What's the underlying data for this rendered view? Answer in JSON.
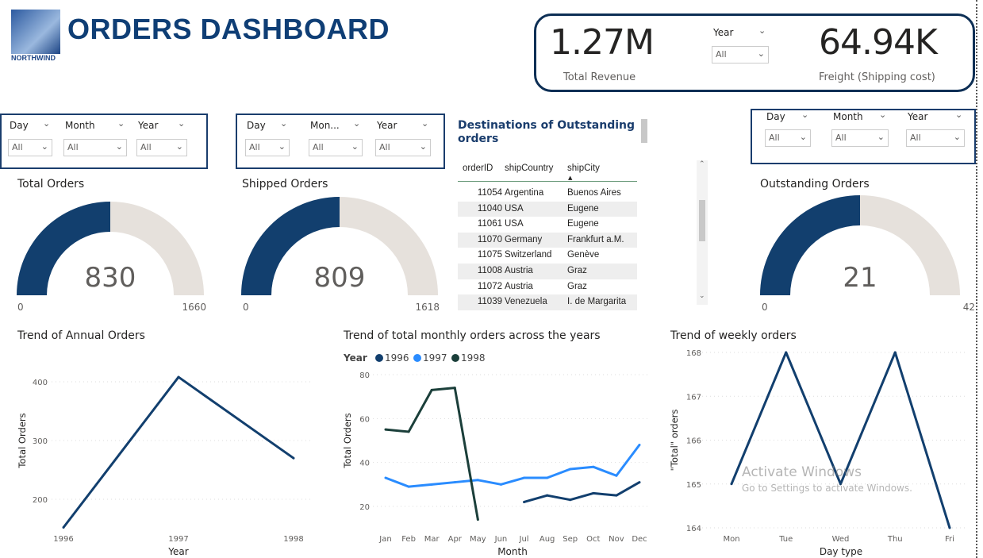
{
  "header": {
    "title": "ORDERS DASHBOARD",
    "logo_text": "NORTHWIND"
  },
  "kpi": {
    "revenue_value": "1.27M",
    "revenue_label": "Total Revenue",
    "freight_value": "64.94K",
    "freight_label": "Freight (Shipping cost)",
    "year_label": "Year",
    "year_value": "All"
  },
  "slicers": [
    {
      "labels": [
        "Day",
        "Month",
        "Year"
      ],
      "values": [
        "All",
        "All",
        "All"
      ]
    },
    {
      "labels": [
        "Day",
        "Mon...",
        "Year"
      ],
      "values": [
        "All",
        "All",
        "All"
      ]
    },
    {
      "labels": [
        "Day",
        "Month",
        "Year"
      ],
      "values": [
        "All",
        "All",
        "All"
      ]
    }
  ],
  "gauges": [
    {
      "title": "Total Orders",
      "value": "830",
      "min": "0",
      "max": "1660",
      "fraction": 0.5
    },
    {
      "title": "Shipped Orders",
      "value": "809",
      "min": "0",
      "max": "1618",
      "fraction": 0.5
    },
    {
      "title": "Outstanding Orders",
      "value": "21",
      "min": "0",
      "max": "42",
      "fraction": 0.5
    }
  ],
  "colors": {
    "primary": "#123f6e",
    "gauge_track": "#e6e1dc",
    "accent_1997": "#2a8cff",
    "accent_1998": "#1b3f3a"
  },
  "table": {
    "title": "Destinations of Outstanding orders",
    "columns": [
      "orderID",
      "shipCountry",
      "shipCity"
    ],
    "rows": [
      [
        "11054",
        "Argentina",
        "Buenos Aires"
      ],
      [
        "11040",
        "USA",
        "Eugene"
      ],
      [
        "11061",
        "USA",
        "Eugene"
      ],
      [
        "11070",
        "Germany",
        "Frankfurt a.M."
      ],
      [
        "11075",
        "Switzerland",
        "Genève"
      ],
      [
        "11008",
        "Austria",
        "Graz"
      ],
      [
        "11072",
        "Austria",
        "Graz"
      ],
      [
        "11039",
        "Venezuela",
        "I. de Margarita"
      ]
    ]
  },
  "chart_data": [
    {
      "type": "line",
      "title": "Trend of Annual Orders",
      "xlabel": "Year",
      "ylabel": "Total Orders",
      "categories": [
        "1996",
        "1997",
        "1998"
      ],
      "yticks": [
        200,
        300,
        400
      ],
      "ylim": [
        152,
        420
      ],
      "grid": true,
      "series": [
        {
          "values": [
            152,
            408,
            270
          ]
        }
      ]
    },
    {
      "type": "line",
      "title": "Trend of total monthly orders across the years",
      "xlabel": "Month",
      "ylabel": "Total Orders",
      "legend_title": "Year",
      "legend": "top-left",
      "categories": [
        "Jan",
        "Feb",
        "Mar",
        "Apr",
        "May",
        "Jun",
        "Jul",
        "Aug",
        "Sep",
        "Oct",
        "Nov",
        "Dec"
      ],
      "yticks": [
        20,
        40,
        60,
        80
      ],
      "ylim": [
        14,
        80
      ],
      "grid": true,
      "series": [
        {
          "name": "1996",
          "values": [
            null,
            null,
            null,
            null,
            null,
            null,
            22,
            25,
            23,
            26,
            25,
            31
          ]
        },
        {
          "name": "1997",
          "values": [
            33,
            29,
            30,
            31,
            32,
            30,
            33,
            33,
            37,
            38,
            34,
            48
          ]
        },
        {
          "name": "1998",
          "values": [
            55,
            54,
            73,
            74,
            14,
            null,
            null,
            null,
            null,
            null,
            null,
            null
          ]
        }
      ]
    },
    {
      "type": "line",
      "title": "Trend of weekly orders",
      "xlabel": "Day type",
      "ylabel": "\"Total\" orders",
      "categories": [
        "Mon",
        "Tue",
        "Wed",
        "Thu",
        "Fri"
      ],
      "yticks": [
        164,
        165,
        166,
        167,
        168
      ],
      "ylim": [
        164,
        168
      ],
      "grid": true,
      "series": [
        {
          "values": [
            165,
            168,
            165,
            168,
            164
          ]
        }
      ]
    }
  ],
  "watermark": {
    "line1": "Activate Windows",
    "line2": "Go to Settings to activate Windows."
  }
}
